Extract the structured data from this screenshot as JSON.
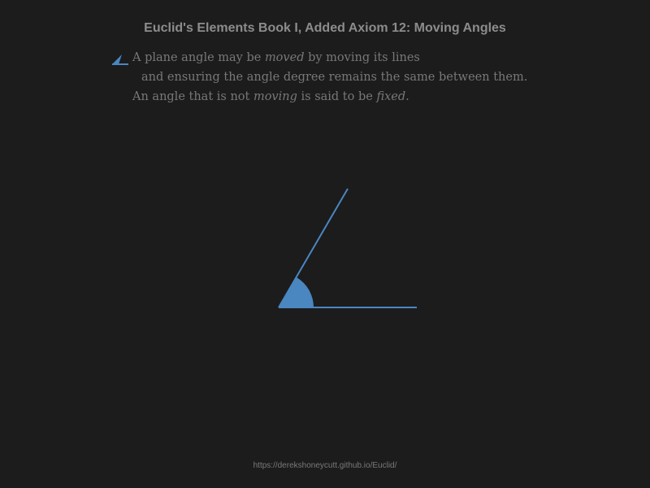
{
  "title": "Euclid's Elements Book I, Added Axiom 12: Moving Angles",
  "paragraph": {
    "icon": "angle-icon",
    "line1": {
      "before": "A plane angle may be ",
      "em": "moved",
      "after": " by moving its lines"
    },
    "line2": {
      "text": "and ensuring the angle degree remains the same between them."
    },
    "line3": {
      "before": "An angle that is not ",
      "em1": "moving",
      "middle": " is said to be ",
      "em2": "fixed",
      "after": "."
    }
  },
  "colors": {
    "accent": "#4a86c0",
    "background": "#1c1c1c",
    "title": "#8c8c8c",
    "text": "#787878"
  },
  "footer": {
    "url": "https://derekshoneycutt.github.io/Euclid/"
  }
}
